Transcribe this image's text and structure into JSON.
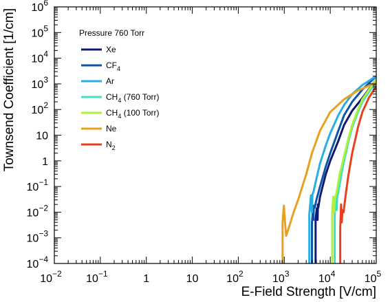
{
  "chart_data": {
    "type": "line",
    "title": "",
    "xlabel": "E-Field Strength [V/cm]",
    "ylabel": "Townsend Coefficient [1/cm]",
    "xscale": "log",
    "yscale": "log",
    "xlim": [
      0.01,
      100000
    ],
    "ylim": [
      0.0001,
      1000000
    ],
    "grid": false,
    "legend_title": "Pressure 760 Torr",
    "legend_position": "top-left",
    "x_ticks": [
      {
        "value": 0.01,
        "base": "10",
        "exp": "−2"
      },
      {
        "value": 0.1,
        "base": "10",
        "exp": "−1"
      },
      {
        "value": 1,
        "base": "1",
        "exp": ""
      },
      {
        "value": 10,
        "base": "10",
        "exp": ""
      },
      {
        "value": 100,
        "base": "10",
        "exp": "2"
      },
      {
        "value": 1000,
        "base": "10",
        "exp": "3"
      },
      {
        "value": 10000,
        "base": "10",
        "exp": "4"
      },
      {
        "value": 100000,
        "base": "10",
        "exp": "5"
      }
    ],
    "y_ticks": [
      {
        "value": 0.0001,
        "base": "10",
        "exp": "−4"
      },
      {
        "value": 0.001,
        "base": "10",
        "exp": "−3"
      },
      {
        "value": 0.01,
        "base": "10",
        "exp": "−2"
      },
      {
        "value": 0.1,
        "base": "10",
        "exp": "−1"
      },
      {
        "value": 1,
        "base": "1",
        "exp": ""
      },
      {
        "value": 10,
        "base": "10",
        "exp": ""
      },
      {
        "value": 100,
        "base": "10",
        "exp": "2"
      },
      {
        "value": 1000,
        "base": "10",
        "exp": "3"
      },
      {
        "value": 10000,
        "base": "10",
        "exp": "4"
      },
      {
        "value": 100000,
        "base": "10",
        "exp": "5"
      },
      {
        "value": 1000000,
        "base": "10",
        "exp": "6"
      }
    ],
    "series": [
      {
        "name": "Xe",
        "label_main": "Xe",
        "label_sub": "",
        "label_suffix": "",
        "color": "#0d1a73",
        "x": [
          4800,
          4800,
          5100,
          5300,
          5400,
          5500,
          6000,
          7000,
          8000,
          10000,
          15000,
          20000,
          30000,
          50000,
          100000
        ],
        "y": [
          0.0001,
          0.005,
          0.014,
          0.005,
          0.02,
          0.015,
          0.04,
          0.12,
          0.3,
          1,
          6,
          25,
          90,
          280,
          1500
        ]
      },
      {
        "name": "CF4",
        "label_main": "CF",
        "label_sub": "4",
        "label_suffix": "",
        "color": "#0b56a8",
        "x": [
          4000,
          4000,
          4200,
          4300,
          4400,
          4600,
          5000,
          6000,
          8000,
          10000,
          15000,
          20000,
          30000,
          50000,
          100000
        ],
        "y": [
          0.0001,
          0.004,
          0.012,
          0.005,
          0.018,
          0.015,
          0.03,
          0.1,
          0.6,
          2,
          15,
          60,
          200,
          600,
          2000
        ]
      },
      {
        "name": "Ar",
        "label_main": "Ar",
        "label_sub": "",
        "label_suffix": "",
        "color": "#29aee4",
        "x": [
          3500,
          3500,
          3800,
          4000,
          4100,
          4300,
          5000,
          6000,
          8000,
          10000,
          15000,
          20000,
          30000,
          50000,
          100000
        ],
        "y": [
          0.0001,
          0.008,
          0.045,
          0.01,
          0.05,
          0.06,
          0.2,
          0.8,
          4,
          12,
          60,
          150,
          400,
          900,
          2000
        ]
      },
      {
        "name": "CH4 (760 Torr)",
        "label_main": "CH",
        "label_sub": "4",
        "label_suffix": "(760 Torr)",
        "color": "#3fe0c0",
        "x": [
          12500,
          12500,
          13200,
          13800,
          14200,
          15000,
          18000,
          20000,
          25000,
          30000,
          40000,
          50000,
          70000,
          100000
        ],
        "y": [
          0.0001,
          0.01,
          0.045,
          0.012,
          0.04,
          0.06,
          0.4,
          1,
          6,
          20,
          80,
          200,
          500,
          1200
        ]
      },
      {
        "name": "CH4 (100 Torr)",
        "label_main": "CH",
        "label_sub": "4",
        "label_suffix": "(100 Torr)",
        "color": "#aef03c",
        "x": [
          11000,
          11000,
          11600,
          12200,
          12600,
          13500,
          16000,
          20000,
          25000,
          30000,
          40000,
          50000,
          70000,
          100000
        ],
        "y": [
          0.0001,
          0.008,
          0.04,
          0.01,
          0.035,
          0.05,
          0.3,
          1.5,
          8,
          25,
          100,
          250,
          600,
          1500
        ]
      },
      {
        "name": "Ne",
        "label_main": "Ne",
        "label_sub": "",
        "label_suffix": "",
        "color": "#e8a020",
        "x": [
          920,
          920,
          980,
          1050,
          1100,
          1300,
          1600,
          2000,
          3000,
          4000,
          6000,
          10000,
          20000,
          40000,
          100000
        ],
        "y": [
          0.0001,
          0.004,
          0.018,
          0.003,
          0.0012,
          0.003,
          0.01,
          0.03,
          0.3,
          2,
          15,
          80,
          250,
          550,
          1100
        ]
      },
      {
        "name": "N2",
        "label_main": "N",
        "label_sub": "2",
        "label_suffix": "",
        "color": "#e8401c",
        "x": [
          16500,
          16500,
          17200,
          17800,
          18400,
          19500,
          22000,
          25000,
          30000,
          40000,
          50000,
          70000,
          100000
        ],
        "y": [
          0.0001,
          0.0025,
          0.02,
          0.004,
          0.012,
          0.01,
          0.06,
          0.3,
          2,
          20,
          80,
          300,
          800
        ]
      }
    ]
  }
}
